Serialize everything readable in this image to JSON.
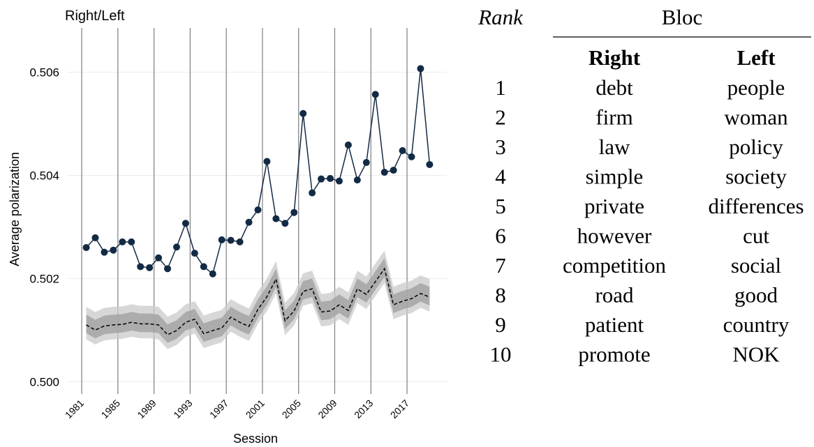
{
  "chart_data": {
    "type": "line",
    "title": "Right/Left",
    "xlabel": "Session",
    "ylabel": "Average polarization",
    "x": [
      1981.5,
      1982.5,
      1983.5,
      1984.5,
      1985.5,
      1986.5,
      1987.5,
      1988.5,
      1989.5,
      1990.5,
      1991.5,
      1992.5,
      1993.5,
      1994.5,
      1995.5,
      1996.5,
      1997.5,
      1998.5,
      1999.5,
      2000.5,
      2001.5,
      2002.5,
      2003.5,
      2004.5,
      2005.5,
      2006.5,
      2007.5,
      2008.5,
      2009.5,
      2010.5,
      2011.5,
      2012.5,
      2013.5,
      2014.5,
      2015.5,
      2016.5,
      2017.5,
      2018.5,
      2019.5
    ],
    "series": [
      {
        "color": "#132a45",
        "style": "solid",
        "markers": true,
        "values": [
          0.5026,
          0.50279,
          0.50251,
          0.50255,
          0.50271,
          0.50271,
          0.50223,
          0.50221,
          0.5024,
          0.50219,
          0.50261,
          0.50307,
          0.50249,
          0.50223,
          0.50209,
          0.50275,
          0.50274,
          0.50271,
          0.50309,
          0.50333,
          0.50427,
          0.50316,
          0.50307,
          0.50328,
          0.5052,
          0.50366,
          0.50393,
          0.50394,
          0.50389,
          0.50459,
          0.50391,
          0.50425,
          0.50557,
          0.50406,
          0.5041,
          0.50448,
          0.50436,
          0.50607,
          0.50421
        ]
      },
      {
        "color": "#000000",
        "style": "dashed",
        "markers": false,
        "values": [
          0.5011,
          0.501,
          0.50108,
          0.5011,
          0.50111,
          0.50115,
          0.50112,
          0.50112,
          0.5011,
          0.50091,
          0.50099,
          0.50115,
          0.50121,
          0.50093,
          0.50099,
          0.50104,
          0.50125,
          0.50115,
          0.50107,
          0.5014,
          0.50165,
          0.50199,
          0.50118,
          0.50137,
          0.50175,
          0.5018,
          0.50135,
          0.50137,
          0.50149,
          0.50138,
          0.5018,
          0.50169,
          0.50194,
          0.50219,
          0.50149,
          0.50156,
          0.50161,
          0.50171,
          0.50164
        ]
      }
    ],
    "bands": [
      {
        "color": "#c9c9c9",
        "lower": [
          0.50082,
          0.50072,
          0.5008,
          0.50082,
          0.50083,
          0.50087,
          0.50084,
          0.50084,
          0.50082,
          0.50063,
          0.50071,
          0.50087,
          0.50093,
          0.50065,
          0.50071,
          0.50076,
          0.50097,
          0.50087,
          0.50079,
          0.50112,
          0.50137,
          0.50171,
          0.5009,
          0.50109,
          0.50147,
          0.50152,
          0.50107,
          0.50109,
          0.50121,
          0.5011,
          0.50152,
          0.50141,
          0.50166,
          0.50191,
          0.50121,
          0.50128,
          0.50133,
          0.50143,
          0.50136
        ],
        "upper": [
          0.50145,
          0.50135,
          0.50143,
          0.50145,
          0.50146,
          0.5015,
          0.50147,
          0.50147,
          0.50145,
          0.50126,
          0.50134,
          0.5015,
          0.50156,
          0.50128,
          0.50134,
          0.50139,
          0.5016,
          0.5015,
          0.50142,
          0.50175,
          0.502,
          0.50234,
          0.50153,
          0.50172,
          0.5021,
          0.50215,
          0.5017,
          0.50172,
          0.50184,
          0.50173,
          0.50215,
          0.50204,
          0.50229,
          0.50254,
          0.50184,
          0.50191,
          0.50196,
          0.50206,
          0.50199
        ]
      },
      {
        "color": "#9e9e9e",
        "lower": [
          0.50094,
          0.50084,
          0.50092,
          0.50094,
          0.50095,
          0.50099,
          0.50096,
          0.50096,
          0.50094,
          0.50075,
          0.50083,
          0.50099,
          0.50105,
          0.50077,
          0.50083,
          0.50088,
          0.50109,
          0.50099,
          0.50091,
          0.50124,
          0.50149,
          0.50183,
          0.50102,
          0.50121,
          0.50159,
          0.50164,
          0.50119,
          0.50121,
          0.50133,
          0.50122,
          0.50164,
          0.50153,
          0.50178,
          0.50203,
          0.50133,
          0.5014,
          0.50145,
          0.50155,
          0.50148
        ],
        "upper": [
          0.5013,
          0.5012,
          0.50128,
          0.5013,
          0.50131,
          0.50135,
          0.50132,
          0.50132,
          0.5013,
          0.50111,
          0.50119,
          0.50135,
          0.50141,
          0.50113,
          0.50119,
          0.50124,
          0.50145,
          0.50135,
          0.50127,
          0.5016,
          0.50185,
          0.50219,
          0.50138,
          0.50157,
          0.50195,
          0.502,
          0.50155,
          0.50157,
          0.50169,
          0.50158,
          0.502,
          0.50189,
          0.50214,
          0.50239,
          0.50169,
          0.50176,
          0.50181,
          0.50191,
          0.50184
        ]
      }
    ],
    "xlim": [
      1979.45,
      2021.4
    ],
    "xticks": [
      1981,
      1985,
      1989,
      1993,
      1997,
      2001,
      2005,
      2009,
      2013,
      2017
    ],
    "ylim": [
      0.49976,
      0.50686
    ],
    "yticks": [
      {
        "value": 0.5,
        "label": "0.500"
      },
      0.502,
      0.504,
      0.506
    ],
    "grid": true,
    "xtick_lines": true
  },
  "table": {
    "header": {
      "rank": "Rank",
      "bloc": "Bloc"
    },
    "columns": [
      "Right",
      "Left"
    ],
    "rows": [
      [
        1,
        "debt",
        "people"
      ],
      [
        2,
        "firm",
        "woman"
      ],
      [
        3,
        "law",
        "policy"
      ],
      [
        4,
        "simple",
        "society"
      ],
      [
        5,
        "private",
        "differences"
      ],
      [
        6,
        "however",
        "cut"
      ],
      [
        7,
        "competition",
        "social"
      ],
      [
        8,
        "road",
        "good"
      ],
      [
        9,
        "patient",
        "country"
      ],
      [
        10,
        "promote",
        "NOK"
      ]
    ]
  }
}
